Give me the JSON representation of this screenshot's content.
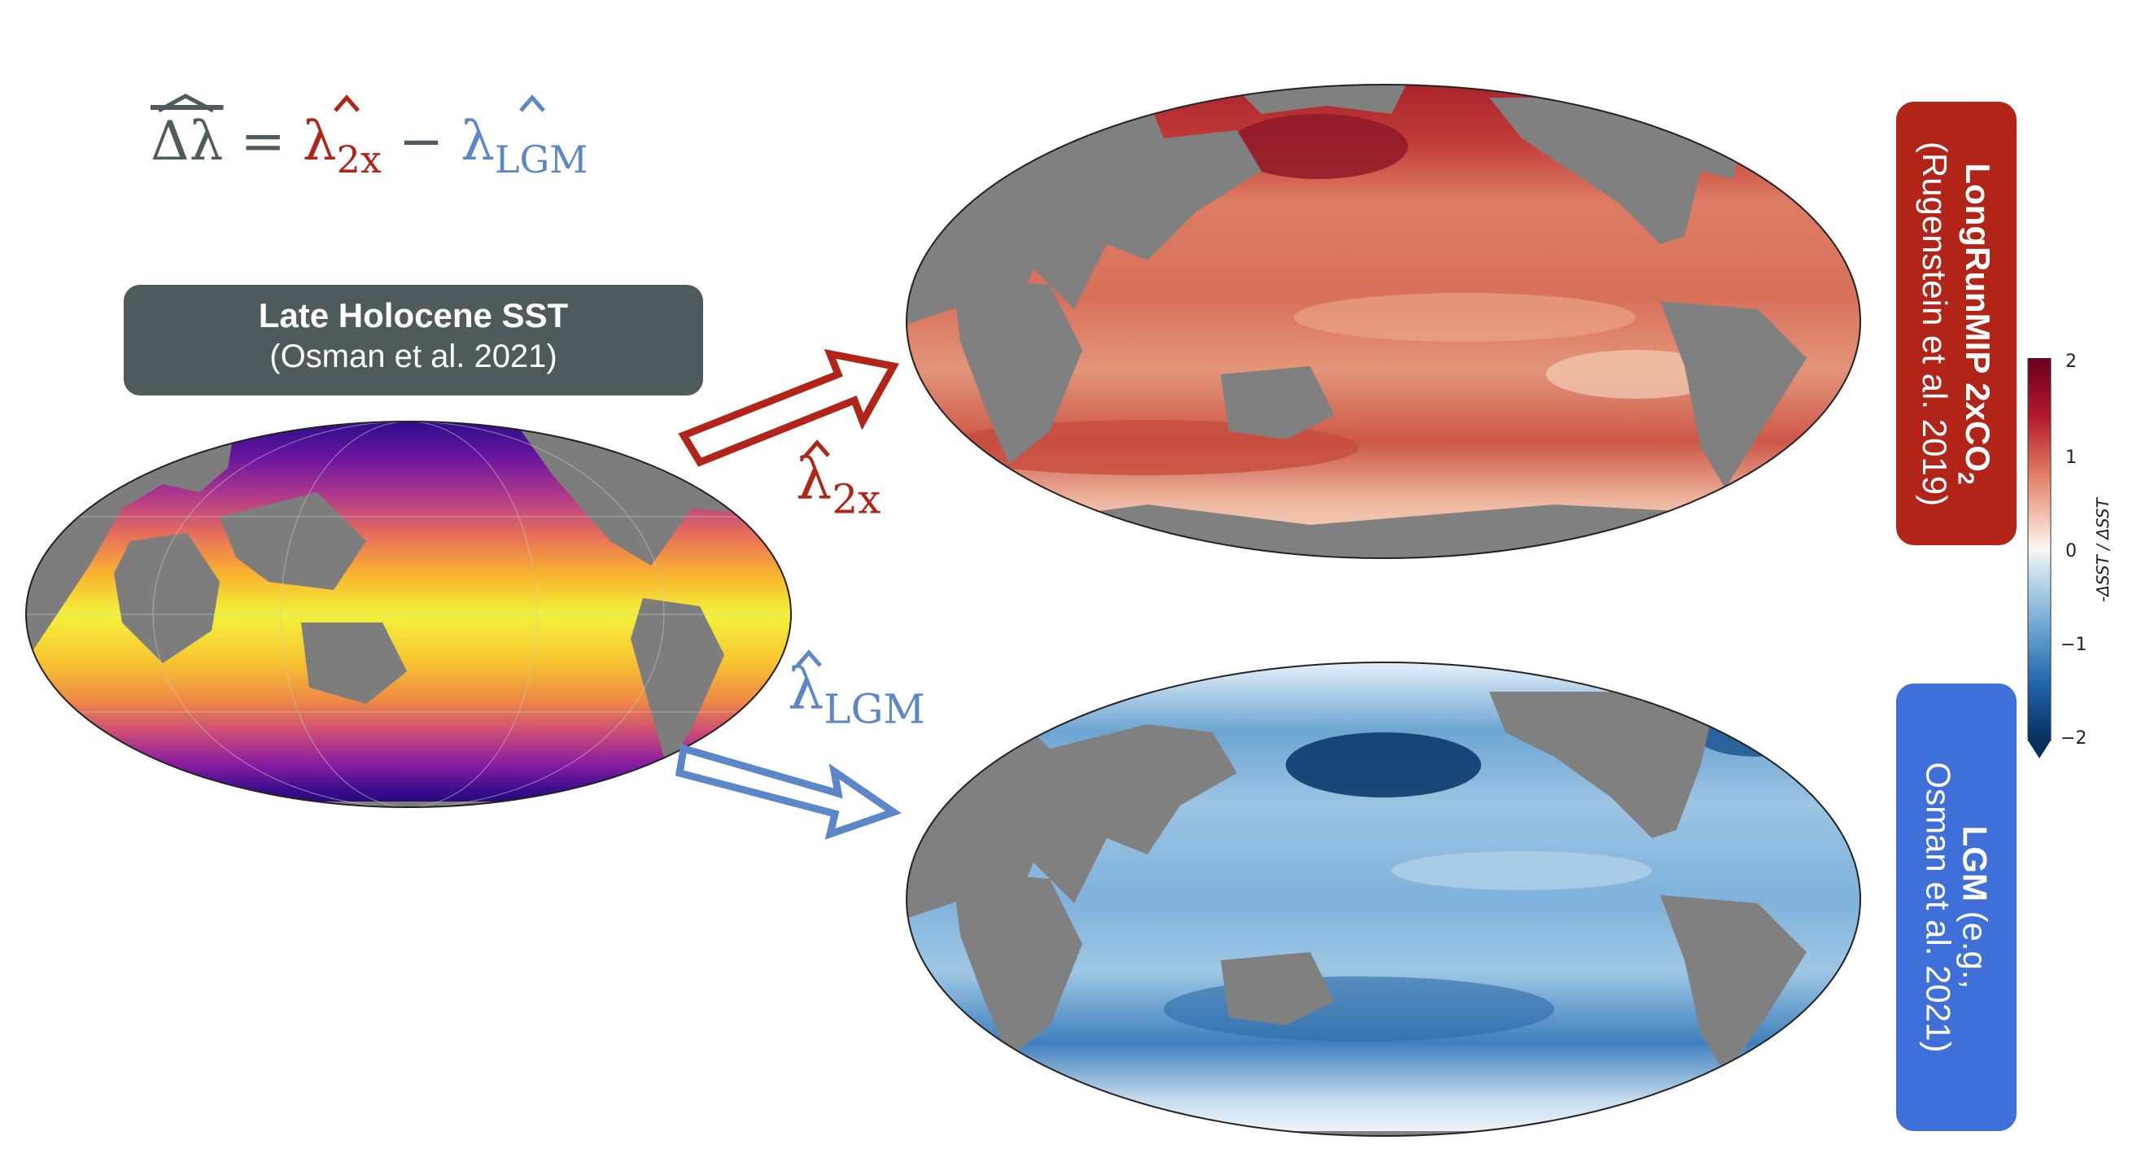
{
  "equation": {
    "lhs": "Δλ",
    "equals": "=",
    "term1_symbol": "λ",
    "term1_sub": "2x",
    "minus": "−",
    "term2_symbol": "λ",
    "term2_sub": "LGM",
    "colors": {
      "text": "#4f5a5c",
      "term1": "#b22418",
      "term2": "#5b87c9"
    }
  },
  "source_box": {
    "title": "Late Holocene SST",
    "subtitle": "(Osman et al. 2021)",
    "color": "#4f5a5c"
  },
  "arrows": {
    "upper": {
      "symbol": "λ",
      "sub": "2x",
      "color": "#b22418"
    },
    "lower": {
      "symbol": "λ",
      "sub": "LGM",
      "color": "#5b87c9"
    }
  },
  "maps": {
    "holocene": {
      "colormap": "plasma"
    },
    "longrun": {
      "colormap": "reds"
    },
    "lgm": {
      "colormap": "blues"
    }
  },
  "longrun_box": {
    "line1_main": "LongRunMIP 2xCO",
    "line1_sub": "2",
    "line2": "(Rugenstein et al. 2019)",
    "color": "#b22418"
  },
  "lgm_box": {
    "line1_bold": "LGM",
    "line1_rest": " (e.g.,",
    "line2": "Osman et al. 2021)",
    "color": "#3f6fd8"
  },
  "colorbar": {
    "ticks": [
      "2",
      "1",
      "0",
      "−1",
      "−2"
    ],
    "label": "-ΔSST / ΔSST",
    "range": [
      -2,
      2
    ]
  }
}
